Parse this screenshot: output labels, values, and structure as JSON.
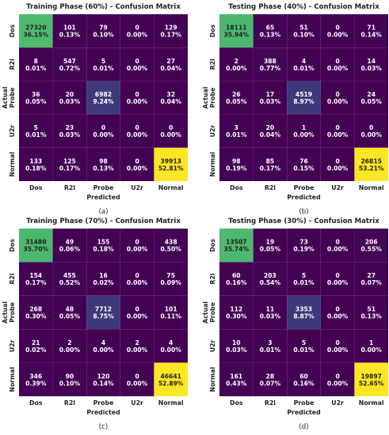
{
  "figure": {
    "colors": {
      "low": "#440154",
      "lowmid": "#3b528b",
      "mid": "#21918c",
      "high": "#5ec962",
      "top": "#fde725"
    }
  },
  "chart_data": [
    {
      "type": "heatmap",
      "title": "Training Phase (60%) - Confusion Matrix",
      "panel_label": "(a)",
      "xlabel": "Predicted",
      "ylabel": "Actual",
      "categories": [
        "Dos",
        "R2l",
        "Probe",
        "U2r",
        "Normal"
      ],
      "counts": [
        [
          27320,
          101,
          79,
          0,
          129
        ],
        [
          8,
          547,
          5,
          0,
          27
        ],
        [
          36,
          20,
          6982,
          0,
          32
        ],
        [
          5,
          23,
          0,
          0,
          0
        ],
        [
          133,
          125,
          98,
          0,
          39913
        ]
      ],
      "percents": [
        [
          "36.15%",
          "0.13%",
          "0.10%",
          "0.00%",
          "0.17%"
        ],
        [
          "0.01%",
          "0.72%",
          "0.01%",
          "0.00%",
          "0.04%"
        ],
        [
          "0.05%",
          "0.03%",
          "9.24%",
          "0.00%",
          "0.04%"
        ],
        [
          "0.01%",
          "0.03%",
          "0.00%",
          "0.00%",
          "0.00%"
        ],
        [
          "0.18%",
          "0.17%",
          "0.13%",
          "0.00%",
          "52.81%"
        ]
      ]
    },
    {
      "type": "heatmap",
      "title": "Testing Phase (40%) - Confusion Matrix",
      "panel_label": "(b)",
      "xlabel": "Predicted",
      "ylabel": "Actual",
      "categories": [
        "Dos",
        "R2l",
        "Probe",
        "U2r",
        "Normal"
      ],
      "counts": [
        [
          18111,
          65,
          51,
          0,
          71
        ],
        [
          2,
          388,
          4,
          0,
          14
        ],
        [
          26,
          17,
          4519,
          0,
          24
        ],
        [
          3,
          20,
          1,
          0,
          0
        ],
        [
          98,
          85,
          76,
          0,
          26815
        ]
      ],
      "percents": [
        [
          "35.94%",
          "0.13%",
          "0.10%",
          "0.00%",
          "0.14%"
        ],
        [
          "0.00%",
          "0.77%",
          "0.01%",
          "0.00%",
          "0.03%"
        ],
        [
          "0.05%",
          "0.03%",
          "8.97%",
          "0.00%",
          "0.05%"
        ],
        [
          "0.01%",
          "0.04%",
          "0.00%",
          "0.00%",
          "0.00%"
        ],
        [
          "0.19%",
          "0.17%",
          "0.15%",
          "0.00%",
          "53.21%"
        ]
      ]
    },
    {
      "type": "heatmap",
      "title": "Training Phase (70%) - Confusion Matrix",
      "panel_label": "(c)",
      "xlabel": "Predicted",
      "ylabel": "Actual",
      "categories": [
        "Dos",
        "R2l",
        "Probe",
        "U2r",
        "Normal"
      ],
      "counts": [
        [
          31480,
          49,
          155,
          0,
          438
        ],
        [
          154,
          455,
          16,
          0,
          75
        ],
        [
          268,
          48,
          7712,
          0,
          101
        ],
        [
          21,
          2,
          4,
          2,
          4
        ],
        [
          346,
          90,
          120,
          0,
          46641
        ]
      ],
      "percents": [
        [
          "35.70%",
          "0.06%",
          "0.18%",
          "0.00%",
          "0.50%"
        ],
        [
          "0.17%",
          "0.52%",
          "0.02%",
          "0.00%",
          "0.09%"
        ],
        [
          "0.30%",
          "0.05%",
          "8.75%",
          "0.00%",
          "0.11%"
        ],
        [
          "0.02%",
          "0.00%",
          "0.00%",
          "0.00%",
          "0.00%"
        ],
        [
          "0.39%",
          "0.10%",
          "0.14%",
          "0.00%",
          "52.89%"
        ]
      ]
    },
    {
      "type": "heatmap",
      "title": "Testing Phase (30%) - Confusion Matrix",
      "panel_label": "(d)",
      "xlabel": "Predicted",
      "ylabel": "Actual",
      "categories": [
        "Dos",
        "R2l",
        "Probe",
        "U2r",
        "Normal"
      ],
      "counts": [
        [
          13507,
          19,
          73,
          0,
          206
        ],
        [
          60,
          203,
          5,
          0,
          27
        ],
        [
          112,
          11,
          3353,
          0,
          51
        ],
        [
          10,
          3,
          5,
          0,
          1
        ],
        [
          161,
          28,
          60,
          0,
          19897
        ]
      ],
      "percents": [
        [
          "35.74%",
          "0.05%",
          "0.19%",
          "0.00%",
          "0.55%"
        ],
        [
          "0.16%",
          "0.54%",
          "0.01%",
          "0.00%",
          "0.07%"
        ],
        [
          "0.30%",
          "0.03%",
          "8.87%",
          "0.00%",
          "0.13%"
        ],
        [
          "0.03%",
          "0.01%",
          "0.01%",
          "0.00%",
          "0.00%"
        ],
        [
          "0.43%",
          "0.07%",
          "0.16%",
          "0.00%",
          "52.65%"
        ]
      ]
    }
  ]
}
